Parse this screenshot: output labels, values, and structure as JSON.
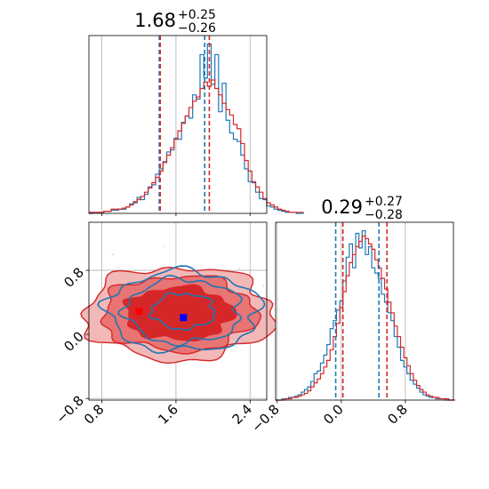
{
  "chart_data": {
    "type": "corner",
    "colors": {
      "blue": "#1f77b4",
      "red": "#d62728",
      "grid": "#b0b0b0",
      "frame": "#000000"
    },
    "panels": [
      {
        "id": "hist-x",
        "type": "histogram",
        "title": {
          "median": "1.68",
          "upper": "+0.25",
          "lower": "−0.26"
        },
        "xlim": [
          0.66,
          2.58
        ],
        "grid": true,
        "series": [
          {
            "name": "",
            "color": "#1f77b4",
            "bin_start": 0.66,
            "bin_width": 0.04,
            "counts": [
              0,
              1,
              1,
              1,
              2,
              2,
              3,
              3,
              4,
              4,
              6,
              9,
              10,
              15,
              13,
              18,
              25,
              27,
              37,
              42,
              49,
              58,
              60,
              71,
              70,
              86,
              92,
              90,
              112,
              108,
              150,
              128,
              160,
              122,
              150,
              96,
              123,
              88,
              76,
              70,
              68,
              55,
              42,
              30,
              29,
              20,
              14,
              13,
              7,
              6,
              4,
              3,
              2,
              1,
              1,
              1,
              0,
              0
            ]
          },
          {
            "name": "",
            "color": "#d62728",
            "bin_start": 0.66,
            "bin_width": 0.04,
            "counts": [
              1,
              1,
              1,
              1,
              2,
              2,
              4,
              4,
              4,
              5,
              6,
              8,
              11,
              13,
              16,
              20,
              24,
              29,
              34,
              40,
              48,
              55,
              62,
              70,
              78,
              85,
              92,
              100,
              106,
              110,
              118,
              124,
              120,
              126,
              118,
              112,
              104,
              98,
              93,
              84,
              80,
              66,
              50,
              40,
              30,
              25,
              20,
              14,
              10,
              8,
              6,
              4,
              3,
              2,
              1,
              1,
              1,
              1
            ]
          }
        ],
        "quantile_lines": [
          {
            "x": 1.42,
            "color": "#1f77b4"
          },
          {
            "x": 1.91,
            "color": "#1f77b4"
          },
          {
            "x": 1.43,
            "color": "#d62728"
          },
          {
            "x": 1.96,
            "color": "#d62728"
          }
        ]
      },
      {
        "id": "contour-xy",
        "type": "contour",
        "xlim": [
          0.66,
          2.58
        ],
        "ylim": [
          -0.82,
          1.4
        ],
        "xticks": [
          "0.8",
          "1.6",
          "2.4"
        ],
        "yticks": [
          "−0.8",
          "0.0",
          "0.8"
        ],
        "grid": true,
        "series": [
          {
            "color": "#d62728",
            "center": [
              1.63,
              0.26
            ],
            "radii_x": [
              0.58,
              0.83,
              1.02
            ],
            "radii_y": [
              0.33,
              0.47,
              0.58
            ],
            "filled": true
          },
          {
            "color": "#1f77b4",
            "center": [
              1.68,
              0.29
            ],
            "radii_x": [
              0.34,
              0.62,
              0.82
            ],
            "radii_y": [
              0.22,
              0.4,
              0.5
            ],
            "filled": false
          }
        ],
        "markers": [
          {
            "x": 1.2,
            "y": 0.29,
            "color": "#ff0000"
          },
          {
            "x": 1.68,
            "y": 0.21,
            "color": "#0000ff"
          }
        ]
      },
      {
        "id": "hist-y",
        "type": "histogram",
        "title": {
          "median": "0.29",
          "upper": "+0.27",
          "lower": "−0.28"
        },
        "xlim": [
          -0.82,
          1.4
        ],
        "xticks": [
          "−0.8",
          "0.0",
          "0.8"
        ],
        "grid": true,
        "series": [
          {
            "name": "",
            "color": "#1f77b4",
            "bin_start": -0.82,
            "bin_width": 0.04,
            "counts": [
              0,
              0,
              1,
              1,
              2,
              2,
              3,
              4,
              6,
              8,
              10,
              14,
              20,
              22,
              28,
              34,
              42,
              54,
              60,
              68,
              75,
              90,
              108,
              118,
              100,
              126,
              115,
              128,
              110,
              116,
              100,
              96,
              92,
              80,
              74,
              66,
              60,
              48,
              40,
              30,
              25,
              20,
              15,
              12,
              9,
              6,
              4,
              3,
              2,
              2,
              1,
              1,
              1,
              0,
              0,
              0
            ]
          },
          {
            "name": "",
            "color": "#d62728",
            "bin_start": -0.82,
            "bin_width": 0.04,
            "counts": [
              0,
              0,
              0,
              1,
              1,
              2,
              2,
              3,
              4,
              5,
              7,
              10,
              13,
              16,
              20,
              25,
              30,
              38,
              48,
              58,
              70,
              82,
              94,
              104,
              110,
              116,
              120,
              124,
              122,
              118,
              114,
              106,
              100,
              92,
              84,
              74,
              66,
              56,
              48,
              40,
              32,
              26,
              20,
              15,
              11,
              8,
              6,
              4,
              3,
              2,
              2,
              1,
              1,
              1,
              0,
              0
            ]
          }
        ],
        "quantile_lines": [
          {
            "x": -0.07,
            "color": "#1f77b4"
          },
          {
            "x": 0.47,
            "color": "#1f77b4"
          },
          {
            "x": 0.02,
            "color": "#d62728"
          },
          {
            "x": 0.57,
            "color": "#d62728"
          }
        ]
      }
    ]
  }
}
